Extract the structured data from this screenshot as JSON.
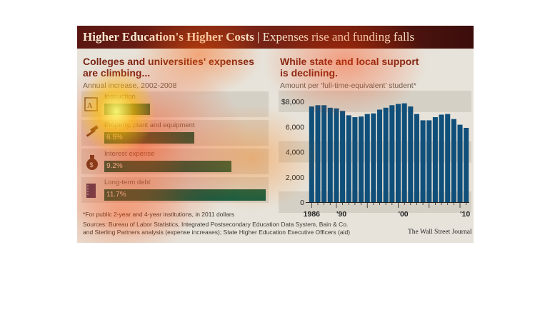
{
  "header": {
    "title_bold": "Higher Education's Higher Costs",
    "title_sep": " | ",
    "title_rest": "Expenses rise and funding falls"
  },
  "left": {
    "heading_line1": "Colleges and universities' expenses",
    "heading_line2": "are climbing...",
    "subtitle": "Annual increase, 2002-2008",
    "bars": [
      {
        "label": "Instruction",
        "value": "",
        "pct": 3.3,
        "icon": "grade-icon"
      },
      {
        "label": "Property, plant and equipment",
        "value": "6.5%",
        "pct": 6.5,
        "icon": "hammer-icon"
      },
      {
        "label": "Interest expense",
        "value": "9.2%",
        "pct": 9.2,
        "icon": "money-bag-icon"
      },
      {
        "label": "Long-term debt",
        "value": "11.7%",
        "pct": 11.7,
        "icon": "ledger-icon"
      }
    ]
  },
  "right": {
    "heading_line1": "While state and local support",
    "heading_line2": "is declining.",
    "subtitle": "Amount per 'full-time-equivalent' student*"
  },
  "chart_data": {
    "type": "bar",
    "title": "While state and local support is declining.",
    "subtitle": "Amount per 'full-time-equivalent' student*",
    "x": [
      1986,
      1987,
      1988,
      1989,
      1990,
      1991,
      1992,
      1993,
      1994,
      1995,
      1996,
      1997,
      1998,
      1999,
      2000,
      2001,
      2002,
      2003,
      2004,
      2005,
      2006,
      2007,
      2008,
      2009,
      2010,
      2011
    ],
    "values": [
      7600,
      7700,
      7700,
      7500,
      7450,
      7250,
      6900,
      6750,
      6800,
      7000,
      7050,
      7350,
      7500,
      7700,
      7800,
      7850,
      7600,
      7000,
      6500,
      6500,
      6750,
      6950,
      7000,
      6600,
      6150,
      5900
    ],
    "yticks": [
      "$8,000",
      "6,000",
      "4,000",
      "2,000",
      "0"
    ],
    "ytick_values": [
      8000,
      6000,
      4000,
      2000,
      0
    ],
    "xtick_labels": [
      "1986",
      "'90",
      "'00",
      "'10"
    ],
    "xtick_years": [
      1986,
      1990,
      2000,
      2010
    ],
    "ylim": [
      0,
      8000
    ],
    "bar_color": "#0f4f7a",
    "grid": false
  },
  "footer": {
    "note": "*For public 2-year and 4-year institutions, in 2011 dollars",
    "source1": "Sources: Bureau of Labor Statistics, Integrated Postsecondary Education Data System, Bain & Co.",
    "source2": "and Sterling Partners analysis (expense increases); State Higher Education Executive Officers (aid)",
    "credit": "The Wall Street Journal"
  }
}
